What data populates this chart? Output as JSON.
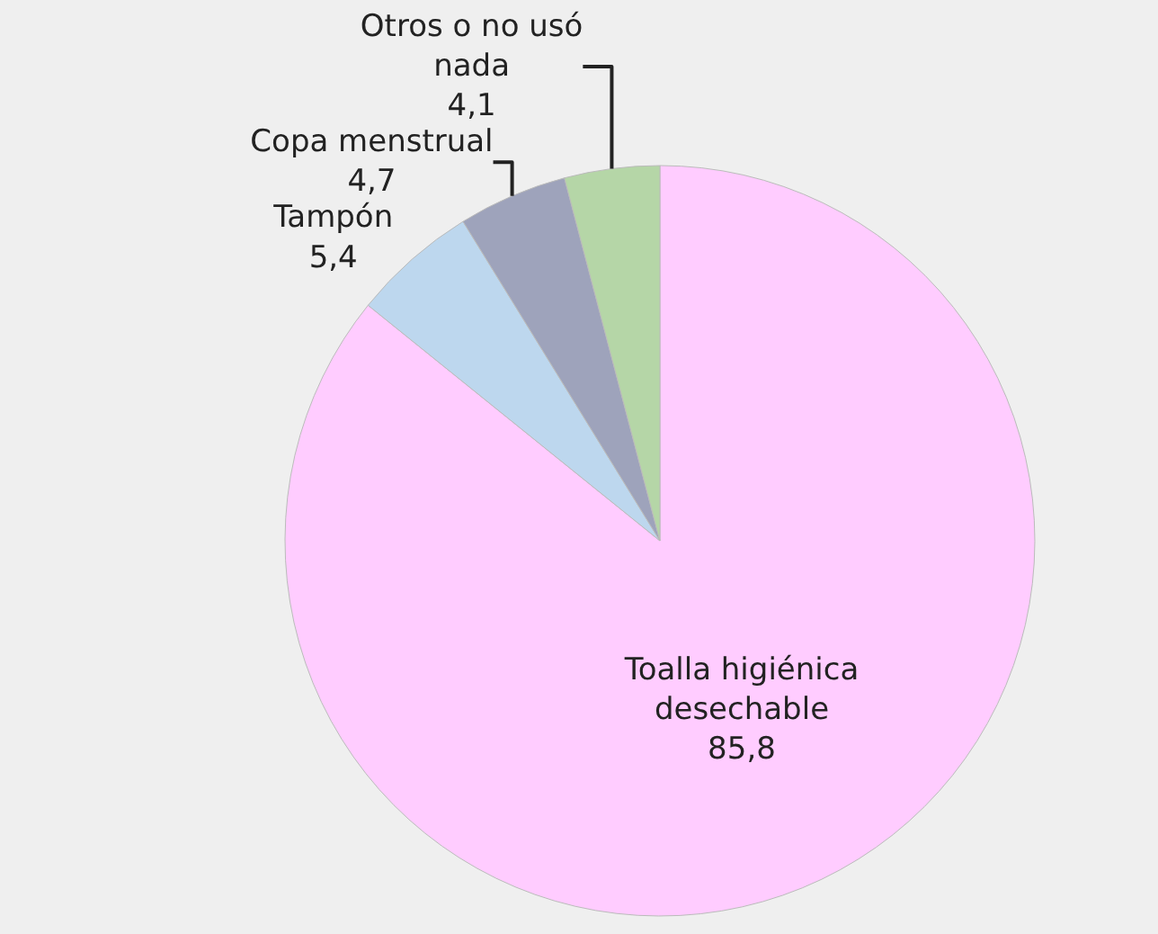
{
  "chart_data": {
    "type": "pie",
    "categories": [
      "Toalla higiénica desechable",
      "Tampón",
      "Copa menstrual",
      "Otros o no usó nada"
    ],
    "values": [
      85.8,
      5.4,
      4.7,
      4.1
    ],
    "value_labels": [
      "85,8",
      "5,4",
      "4,7",
      "4,1"
    ],
    "colors": [
      "#ffccff",
      "#bdd7ee",
      "#9ea3bb",
      "#b5d6a7"
    ]
  }
}
